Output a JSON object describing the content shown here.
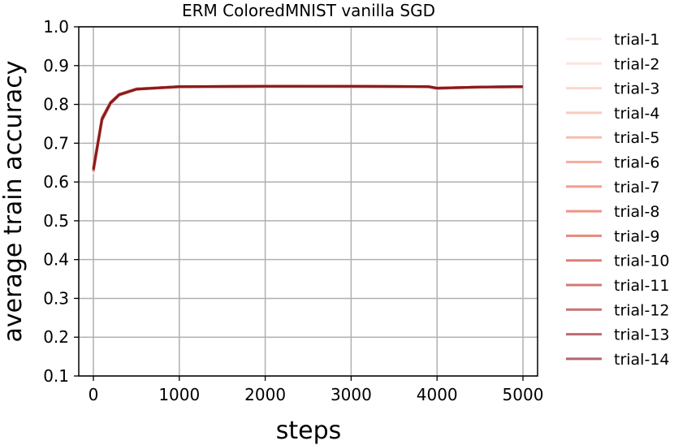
{
  "chart_data": {
    "type": "line",
    "title": "ERM ColoredMNIST vanilla SGD",
    "xlabel": "steps",
    "ylabel": "average train accuracy",
    "xlim": [
      -170,
      5170
    ],
    "ylim": [
      0.1,
      1.0
    ],
    "xticks": [
      0,
      1000,
      2000,
      3000,
      4000,
      5000
    ],
    "xtick_labels": [
      "0",
      "1000",
      "2000",
      "3000",
      "4000",
      "5000"
    ],
    "yticks": [
      0.1,
      0.2,
      0.3,
      0.4,
      0.5,
      0.6,
      0.7,
      0.8,
      0.9,
      1.0
    ],
    "ytick_labels": [
      "0.1",
      "0.2",
      "0.3",
      "0.4",
      "0.5",
      "0.6",
      "0.7",
      "0.8",
      "0.9",
      "1.0"
    ],
    "grid": true,
    "legend_position": "outside-right",
    "colors": {
      "trial-1": "#fdeeea",
      "trial-2": "#fce4de",
      "trial-3": "#fbd8cf",
      "trial-4": "#f9cbbf",
      "trial-5": "#f7bdae",
      "trial-6": "#f4ae9f",
      "trial-7": "#f0a090",
      "trial-8": "#eb9585",
      "trial-9": "#e38a7c",
      "trial-10": "#da8078",
      "trial-11": "#d27a76",
      "trial-12": "#c87276",
      "trial-13": "#bc6a74",
      "trial-14": "#b36470",
      "mean": "#8b1a1a"
    },
    "series": [
      {
        "name": "trial-1",
        "x": [
          0,
          100,
          200,
          300,
          500,
          1000,
          2000,
          3000,
          3900,
          4000,
          4500,
          5000
        ],
        "y": [
          0.62,
          0.755,
          0.8,
          0.822,
          0.838,
          0.845,
          0.846,
          0.846,
          0.845,
          0.841,
          0.844,
          0.845
        ]
      },
      {
        "name": "trial-2",
        "x": [
          0,
          100,
          200,
          300,
          500,
          1000,
          2000,
          3000,
          3900,
          4000,
          4500,
          5000
        ],
        "y": [
          0.628,
          0.76,
          0.803,
          0.824,
          0.839,
          0.846,
          0.847,
          0.847,
          0.846,
          0.842,
          0.845,
          0.846
        ]
      },
      {
        "name": "trial-3",
        "x": [
          0,
          100,
          200,
          300,
          500,
          1000,
          2000,
          3000,
          3900,
          4000,
          4500,
          5000
        ],
        "y": [
          0.635,
          0.764,
          0.805,
          0.826,
          0.84,
          0.846,
          0.847,
          0.846,
          0.846,
          0.842,
          0.845,
          0.845
        ]
      },
      {
        "name": "trial-4",
        "x": [
          0,
          100,
          200,
          300,
          500,
          1000,
          2000,
          3000,
          3900,
          4000,
          4500,
          5000
        ],
        "y": [
          0.64,
          0.768,
          0.807,
          0.827,
          0.841,
          0.846,
          0.847,
          0.847,
          0.846,
          0.843,
          0.845,
          0.846
        ]
      },
      {
        "name": "trial-5",
        "x": [
          0,
          100,
          200,
          300,
          500,
          1000,
          2000,
          3000,
          3900,
          4000,
          4500,
          5000
        ],
        "y": [
          0.625,
          0.758,
          0.801,
          0.823,
          0.838,
          0.845,
          0.846,
          0.846,
          0.845,
          0.841,
          0.844,
          0.845
        ]
      },
      {
        "name": "trial-6",
        "x": [
          0,
          100,
          200,
          300,
          500,
          1000,
          2000,
          3000,
          3900,
          4000,
          4500,
          5000
        ],
        "y": [
          0.632,
          0.762,
          0.804,
          0.825,
          0.839,
          0.846,
          0.847,
          0.847,
          0.846,
          0.842,
          0.845,
          0.846
        ]
      },
      {
        "name": "trial-7",
        "x": [
          0,
          100,
          200,
          300,
          500,
          1000,
          2000,
          3000,
          3900,
          4000,
          4500,
          5000
        ],
        "y": [
          0.638,
          0.766,
          0.806,
          0.826,
          0.84,
          0.846,
          0.847,
          0.847,
          0.846,
          0.842,
          0.845,
          0.846
        ]
      },
      {
        "name": "trial-8",
        "x": [
          0,
          100,
          200,
          300,
          500,
          1000,
          2000,
          3000,
          3900,
          4000,
          4500,
          5000
        ],
        "y": [
          0.63,
          0.761,
          0.803,
          0.824,
          0.839,
          0.845,
          0.846,
          0.846,
          0.846,
          0.842,
          0.845,
          0.845
        ]
      },
      {
        "name": "trial-9",
        "x": [
          0,
          100,
          200,
          300,
          500,
          1000,
          2000,
          3000,
          3900,
          4000,
          4500,
          5000
        ],
        "y": [
          0.633,
          0.763,
          0.804,
          0.825,
          0.84,
          0.846,
          0.847,
          0.847,
          0.846,
          0.842,
          0.845,
          0.846
        ]
      },
      {
        "name": "trial-10",
        "x": [
          0,
          100,
          200,
          300,
          500,
          1000,
          2000,
          3000,
          3900,
          4000,
          4500,
          5000
        ],
        "y": [
          0.627,
          0.759,
          0.802,
          0.824,
          0.839,
          0.845,
          0.846,
          0.846,
          0.845,
          0.841,
          0.844,
          0.845
        ]
      },
      {
        "name": "trial-11",
        "x": [
          0,
          100,
          200,
          300,
          500,
          1000,
          2000,
          3000,
          3900,
          4000,
          4500,
          5000
        ],
        "y": [
          0.636,
          0.765,
          0.805,
          0.826,
          0.84,
          0.846,
          0.847,
          0.847,
          0.846,
          0.842,
          0.845,
          0.846
        ]
      },
      {
        "name": "trial-12",
        "x": [
          0,
          100,
          200,
          300,
          500,
          1000,
          2000,
          3000,
          3900,
          4000,
          4500,
          5000
        ],
        "y": [
          0.631,
          0.762,
          0.803,
          0.825,
          0.839,
          0.846,
          0.847,
          0.846,
          0.846,
          0.842,
          0.845,
          0.845
        ]
      },
      {
        "name": "trial-13",
        "x": [
          0,
          100,
          200,
          300,
          500,
          1000,
          2000,
          3000,
          3900,
          4000,
          4500,
          5000
        ],
        "y": [
          0.634,
          0.763,
          0.804,
          0.825,
          0.84,
          0.846,
          0.847,
          0.847,
          0.846,
          0.842,
          0.845,
          0.846
        ]
      },
      {
        "name": "trial-14",
        "x": [
          0,
          100,
          200,
          300,
          500,
          1000,
          2000,
          3000,
          3900,
          4000,
          4500,
          5000
        ],
        "y": [
          0.629,
          0.76,
          0.802,
          0.824,
          0.839,
          0.845,
          0.846,
          0.846,
          0.845,
          0.841,
          0.844,
          0.845
        ]
      }
    ],
    "mean": {
      "x": [
        0,
        100,
        200,
        300,
        500,
        1000,
        2000,
        3000,
        3900,
        4000,
        4500,
        5000
      ],
      "y": [
        0.632,
        0.762,
        0.804,
        0.825,
        0.839,
        0.846,
        0.847,
        0.847,
        0.846,
        0.842,
        0.845,
        0.846
      ]
    }
  }
}
